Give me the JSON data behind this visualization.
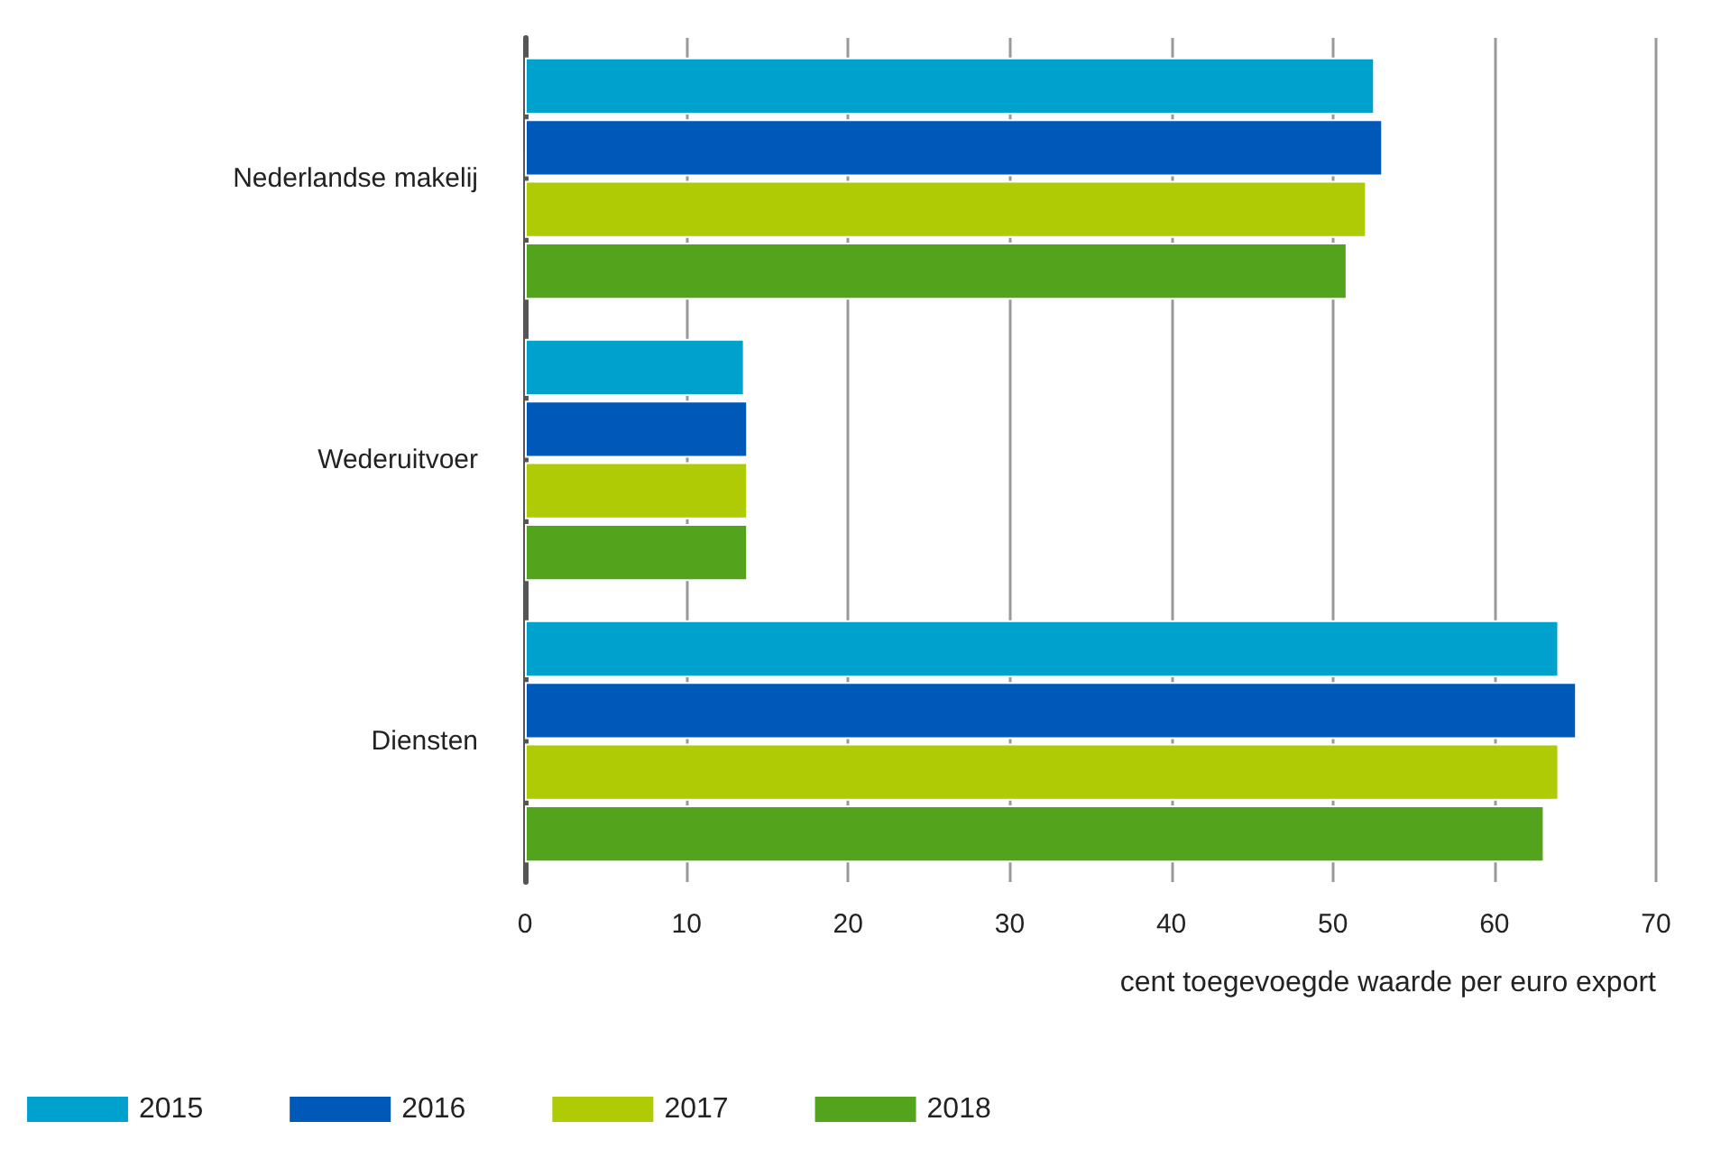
{
  "chart_data": {
    "type": "bar",
    "orientation": "horizontal",
    "xlabel": "cent toegevoegde waarde per euro export",
    "categories": [
      "Nederlandse makelij",
      "Wederuitvoer",
      "Diensten"
    ],
    "series": [
      {
        "name": "2015",
        "color": "#00a1cd",
        "values": [
          52.6,
          13.6,
          64.0
        ]
      },
      {
        "name": "2016",
        "color": "#0058b8",
        "values": [
          53.1,
          13.8,
          65.1
        ]
      },
      {
        "name": "2017",
        "color": "#afcb05",
        "values": [
          52.1,
          13.8,
          64.0
        ]
      },
      {
        "name": "2018",
        "color": "#53a31d",
        "values": [
          50.9,
          13.8,
          63.1
        ]
      }
    ],
    "xlim": [
      0,
      70
    ],
    "xticks": [
      0,
      10,
      20,
      30,
      40,
      50,
      60,
      70
    ],
    "grid": "x",
    "legend": "bottom left"
  }
}
